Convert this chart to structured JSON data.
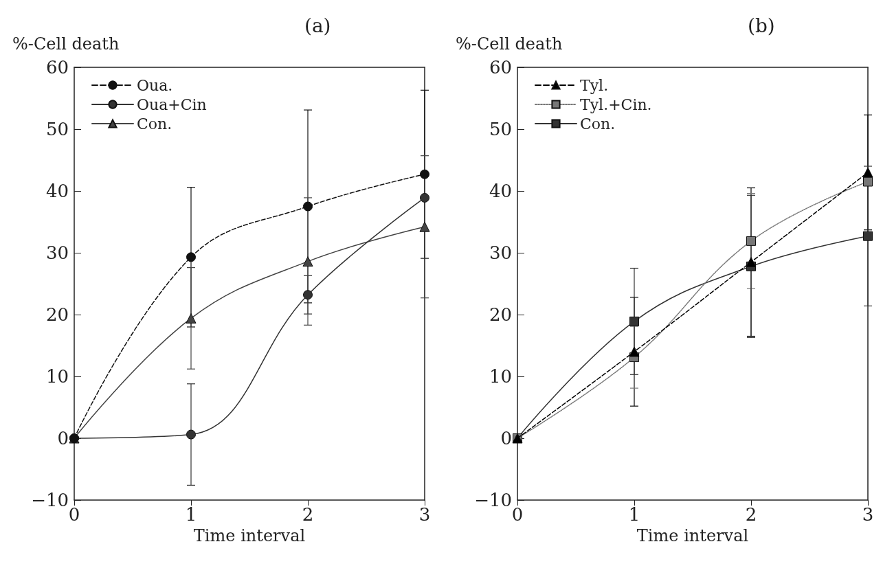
{
  "chart_data": [
    {
      "type": "line",
      "title": "(a)",
      "ylabel": "%-Cell death",
      "xlabel": "Time interval",
      "x": [
        0,
        1,
        2,
        3
      ],
      "xlim": [
        0,
        3
      ],
      "xticks": [
        0,
        1,
        2,
        3
      ],
      "ylim": [
        -10,
        60
      ],
      "yticks": [
        -10,
        0,
        10,
        20,
        30,
        40,
        50,
        60
      ],
      "grid": false,
      "legend": "top left",
      "series": [
        {
          "name": "Oua.",
          "color": "#111111",
          "marker": "circle",
          "line_style": "dashed",
          "values": [
            0,
            29.3,
            37.5,
            42.7
          ],
          "errors": [
            null,
            11.3,
            15.6,
            13.6
          ]
        },
        {
          "name": "Oua+Cin",
          "color": "#333333",
          "marker": "circle",
          "line_style": "solid",
          "values": [
            0,
            0.6,
            23.2,
            38.9
          ],
          "errors": [
            null,
            8.2,
            3.1,
            null
          ]
        },
        {
          "name": "Con.",
          "color": "#444444",
          "marker": "triangle",
          "line_style": "solid",
          "values": [
            0,
            19.4,
            28.6,
            34.2
          ],
          "errors": [
            null,
            8.2,
            10.3,
            11.5
          ]
        }
      ]
    },
    {
      "type": "line",
      "title": "(b)",
      "ylabel": "%-Cell death",
      "xlabel": "Time interval",
      "x": [
        0,
        1,
        2,
        3
      ],
      "xlim": [
        0,
        3
      ],
      "xticks": [
        0,
        1,
        2,
        3
      ],
      "ylim": [
        -10,
        60
      ],
      "yticks": [
        -10,
        0,
        10,
        20,
        30,
        40,
        50,
        60
      ],
      "grid": false,
      "legend": "top left",
      "series": [
        {
          "name": "Tyl.",
          "color": "#000000",
          "marker": "triangle",
          "line_style": "dashed",
          "values": [
            0,
            14.0,
            28.5,
            43.0
          ],
          "errors": [
            null,
            8.8,
            12.0,
            9.3
          ]
        },
        {
          "name": "Tyl.+Cin.",
          "color": "#777777",
          "marker": "square",
          "line_style": "dotted",
          "values": [
            0,
            13.1,
            31.9,
            41.5
          ],
          "errors": [
            null,
            5.0,
            7.7,
            null
          ]
        },
        {
          "name": "Con.",
          "color": "#333333",
          "marker": "square",
          "line_style": "solid",
          "values": [
            0,
            18.9,
            27.8,
            32.7
          ],
          "errors": [
            null,
            8.6,
            11.5,
            11.3
          ]
        }
      ]
    }
  ]
}
